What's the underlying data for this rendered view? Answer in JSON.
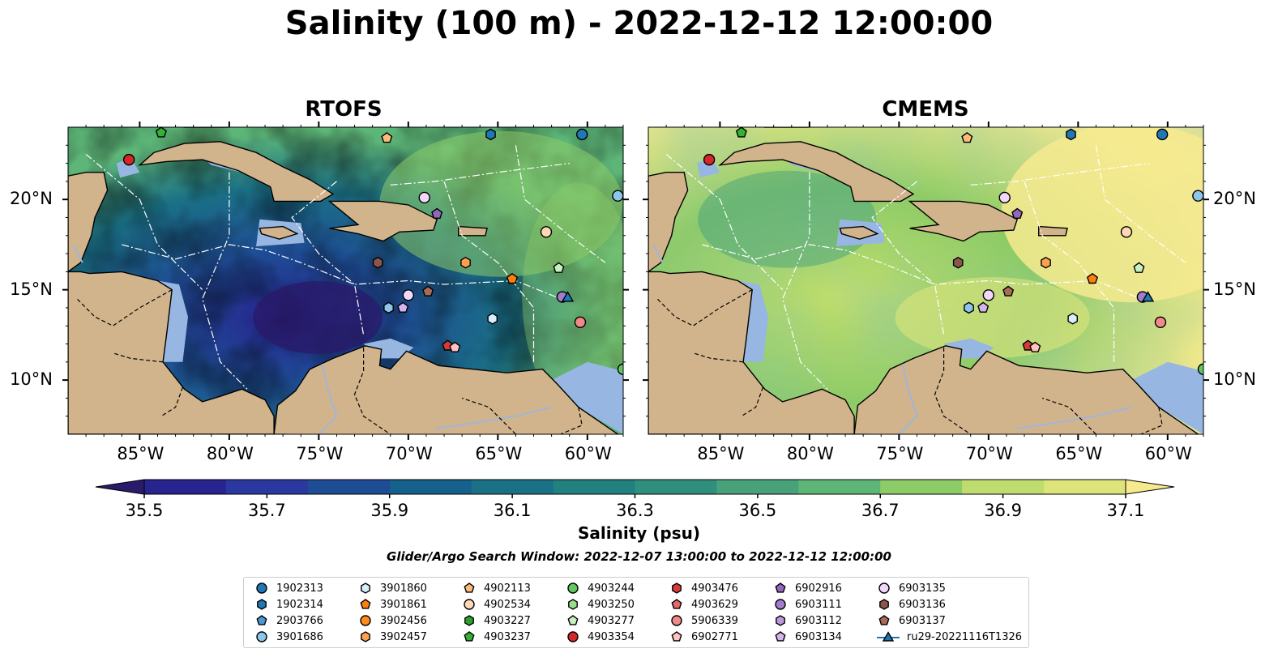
{
  "title": "Salinity (100 m) - 2022-12-12 12:00:00",
  "panels": [
    {
      "title": "RTOFS",
      "scheme": "fresh"
    },
    {
      "title": "CMEMS",
      "scheme": "salty"
    }
  ],
  "axes": {
    "lon_ticks": [
      "85°W",
      "80°W",
      "75°W",
      "70°W",
      "65°W",
      "60°W"
    ],
    "lat_ticks": [
      "20°N",
      "15°N",
      "10°N"
    ],
    "lon_range": [
      -89,
      -58
    ],
    "lat_range": [
      7,
      24
    ]
  },
  "colorbar": {
    "label": "Salinity (psu)",
    "ticks": [
      "35.5",
      "35.7",
      "35.9",
      "36.1",
      "36.3",
      "36.5",
      "36.7",
      "36.9",
      "37.1"
    ],
    "range": [
      35.4,
      37.2
    ],
    "colors": [
      "#2a1a6a",
      "#27248f",
      "#2a38a0",
      "#1e4c95",
      "#16608c",
      "#1a7085",
      "#22807f",
      "#2f8f7c",
      "#47a27a",
      "#5db678",
      "#8dcb67",
      "#bfdd6e",
      "#dde47a",
      "#f6ea8f"
    ]
  },
  "search_window": "Glider/Argo Search Window: 2022-12-07 13:00:00 to 2022-12-12 12:00:00",
  "land_color": "#d2b48c",
  "shelf_color": "#97b6e2",
  "legend": [
    {
      "label": "1902313",
      "marker": "circle",
      "color": "#1f77b4"
    },
    {
      "label": "1902314",
      "marker": "hexagon",
      "color": "#1f77b4"
    },
    {
      "label": "2903766",
      "marker": "pentagon",
      "color": "#4a9bd0"
    },
    {
      "label": "3901686",
      "marker": "circle",
      "color": "#8ec6ea"
    },
    {
      "label": "3901860",
      "marker": "hexagon",
      "color": "#d8eefb"
    },
    {
      "label": "3901861",
      "marker": "pentagon",
      "color": "#ff7f0e"
    },
    {
      "label": "3902456",
      "marker": "circle",
      "color": "#ff8c1a"
    },
    {
      "label": "3902457",
      "marker": "hexagon",
      "color": "#ffa050"
    },
    {
      "label": "4902113",
      "marker": "pentagon",
      "color": "#ffbb78"
    },
    {
      "label": "4902534",
      "marker": "circle",
      "color": "#ffd8b5"
    },
    {
      "label": "4903227",
      "marker": "hexagon",
      "color": "#2ca02c"
    },
    {
      "label": "4903237",
      "marker": "pentagon",
      "color": "#34b234"
    },
    {
      "label": "4903244",
      "marker": "circle",
      "color": "#62c862"
    },
    {
      "label": "4903250",
      "marker": "hexagon",
      "color": "#98df8a"
    },
    {
      "label": "4903277",
      "marker": "pentagon",
      "color": "#c8f0c0"
    },
    {
      "label": "4903354",
      "marker": "circle",
      "color": "#d62728"
    },
    {
      "label": "4903476",
      "marker": "hexagon",
      "color": "#d83a3a"
    },
    {
      "label": "4903629",
      "marker": "pentagon",
      "color": "#e8686a"
    },
    {
      "label": "5906339",
      "marker": "circle",
      "color": "#f08a88"
    },
    {
      "label": "6902771",
      "marker": "pentagon",
      "color": "#ffc4c0"
    },
    {
      "label": "6902916",
      "marker": "pentagon",
      "color": "#9467bd"
    },
    {
      "label": "6903111",
      "marker": "circle",
      "color": "#a47ccc"
    },
    {
      "label": "6903112",
      "marker": "hexagon",
      "color": "#bc98dc"
    },
    {
      "label": "6903134",
      "marker": "pentagon",
      "color": "#d3b5ec"
    },
    {
      "label": "6903135",
      "marker": "circle",
      "color": "#f0d8f8"
    },
    {
      "label": "6903136",
      "marker": "hexagon",
      "color": "#8c564b"
    },
    {
      "label": "6903137",
      "marker": "pentagon",
      "color": "#a86b56"
    },
    {
      "label": "ru29-20221116T1326",
      "marker": "triangle",
      "color": "#1f77b4"
    }
  ],
  "floats": [
    {
      "lon": -85.6,
      "lat": 22.2,
      "marker": "circle",
      "color": "#d62728"
    },
    {
      "lon": -83.8,
      "lat": 23.7,
      "marker": "pentagon",
      "color": "#34b234"
    },
    {
      "lon": -71.2,
      "lat": 23.4,
      "marker": "pentagon",
      "color": "#ffbb78"
    },
    {
      "lon": -65.4,
      "lat": 23.6,
      "marker": "hexagon",
      "color": "#1f77b4"
    },
    {
      "lon": -60.3,
      "lat": 23.6,
      "marker": "circle",
      "color": "#1f77b4"
    },
    {
      "lon": -58.3,
      "lat": 20.2,
      "marker": "circle",
      "color": "#8ec6ea"
    },
    {
      "lon": -69.1,
      "lat": 20.1,
      "marker": "circle",
      "color": "#f0d8f8"
    },
    {
      "lon": -68.4,
      "lat": 19.2,
      "marker": "pentagon",
      "color": "#9467bd"
    },
    {
      "lon": -62.3,
      "lat": 18.2,
      "marker": "circle",
      "color": "#ffd8b5"
    },
    {
      "lon": -61.6,
      "lat": 16.2,
      "marker": "pentagon",
      "color": "#c8f0c0"
    },
    {
      "lon": -71.7,
      "lat": 16.5,
      "marker": "hexagon",
      "color": "#8c564b"
    },
    {
      "lon": -66.8,
      "lat": 16.5,
      "marker": "hexagon",
      "color": "#ffa050"
    },
    {
      "lon": -64.2,
      "lat": 15.6,
      "marker": "pentagon",
      "color": "#ff7f0e"
    },
    {
      "lon": -70.0,
      "lat": 14.7,
      "marker": "circle",
      "color": "#f0d8f8"
    },
    {
      "lon": -68.9,
      "lat": 14.9,
      "marker": "pentagon",
      "color": "#a86b56"
    },
    {
      "lon": -71.1,
      "lat": 14.0,
      "marker": "hexagon",
      "color": "#8ec6ea"
    },
    {
      "lon": -70.3,
      "lat": 14.0,
      "marker": "pentagon",
      "color": "#d3b5ec"
    },
    {
      "lon": -61.4,
      "lat": 14.6,
      "marker": "circle",
      "color": "#a47ccc"
    },
    {
      "lon": -61.1,
      "lat": 14.6,
      "marker": "triangle",
      "color": "#1f77b4"
    },
    {
      "lon": -65.3,
      "lat": 13.4,
      "marker": "hexagon",
      "color": "#d8eefb"
    },
    {
      "lon": -60.4,
      "lat": 13.2,
      "marker": "circle",
      "color": "#f08a88"
    },
    {
      "lon": -67.8,
      "lat": 11.9,
      "marker": "pentagon",
      "color": "#d83a3a"
    },
    {
      "lon": -67.4,
      "lat": 11.8,
      "marker": "pentagon",
      "color": "#ffc4c0"
    },
    {
      "lon": -58.0,
      "lat": 10.6,
      "marker": "circle",
      "color": "#62c862"
    }
  ]
}
